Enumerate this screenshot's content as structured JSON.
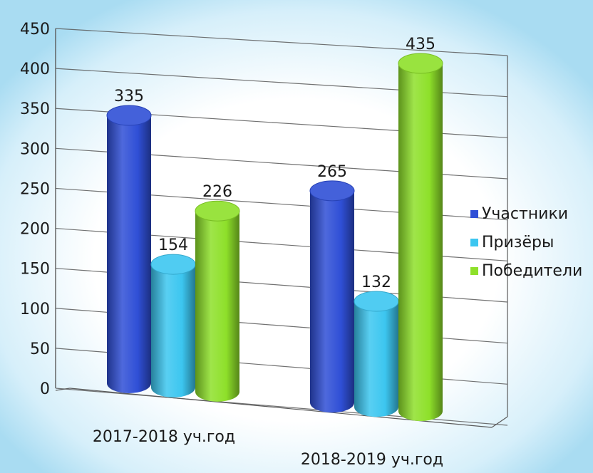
{
  "chart_data": {
    "type": "bar",
    "categories": [
      "2017-2018 уч.год",
      "2018-2019 уч.год"
    ],
    "series": [
      {
        "name": "Участники",
        "values": [
          335,
          265
        ],
        "color": "#2f4fd6"
      },
      {
        "name": "Призёры",
        "values": [
          154,
          132
        ],
        "color": "#3cc6f0"
      },
      {
        "name": "Победители",
        "values": [
          226,
          435
        ],
        "color": "#8ee02a"
      }
    ],
    "ylim": [
      0,
      450
    ],
    "yticks": [
      0,
      50,
      100,
      150,
      200,
      250,
      300,
      350,
      400,
      450
    ],
    "grid": true,
    "legend_position": "right",
    "style": "3d-cylinder",
    "colors": {
      "background_glow": "#bfe7f7",
      "grid": "#5a5a5a"
    }
  }
}
